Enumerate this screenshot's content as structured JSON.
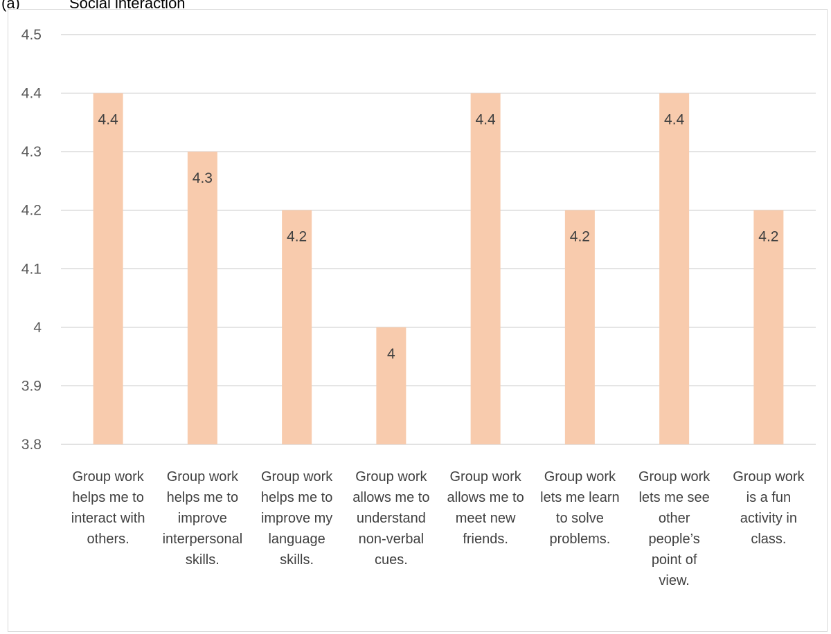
{
  "heading": {
    "label": "(a)",
    "text": "Social interaction"
  },
  "chart_data": {
    "type": "bar",
    "title": "",
    "xlabel": "",
    "ylabel": "",
    "ylim": [
      3.8,
      4.5
    ],
    "yticks": [
      "3.8",
      "3.9",
      "4",
      "4.1",
      "4.2",
      "4.3",
      "4.4",
      "4.5"
    ],
    "grid": true,
    "legend": "none",
    "bar_color": "#f8cbad",
    "categories": [
      "Group work helps me to interact with others.",
      "Group work helps me to improve interpersonal skills.",
      "Group work helps me to improve my language skills.",
      "Group work allows me to understand non-verbal cues.",
      "Group work allows me to meet new friends.",
      "Group work lets me learn to solve problems.",
      "Group work lets me see other people’s point of view.",
      "Group work is a fun activity in class."
    ],
    "category_lines": [
      [
        "Group work",
        "helps me to",
        "interact with",
        "others."
      ],
      [
        "Group work",
        "helps me to",
        "improve",
        "interpersonal",
        "skills."
      ],
      [
        "Group work",
        "helps me to",
        "improve my",
        "language",
        "skills."
      ],
      [
        "Group work",
        "allows me to",
        "understand",
        "non-verbal",
        "cues."
      ],
      [
        "Group work",
        "allows me to",
        "meet new",
        "friends."
      ],
      [
        "Group work",
        "lets me learn",
        "to solve",
        "problems."
      ],
      [
        "Group work",
        "lets me see",
        "other",
        "people’s",
        "point of",
        "view."
      ],
      [
        "Group work",
        "is a fun",
        "activity in",
        "class."
      ]
    ],
    "values": [
      4.4,
      4.3,
      4.2,
      4,
      4.4,
      4.2,
      4.4,
      4.2
    ],
    "data_labels": [
      "4.4",
      "4.3",
      "4.2",
      "4",
      "4.4",
      "4.2",
      "4.4",
      "4.2"
    ]
  }
}
